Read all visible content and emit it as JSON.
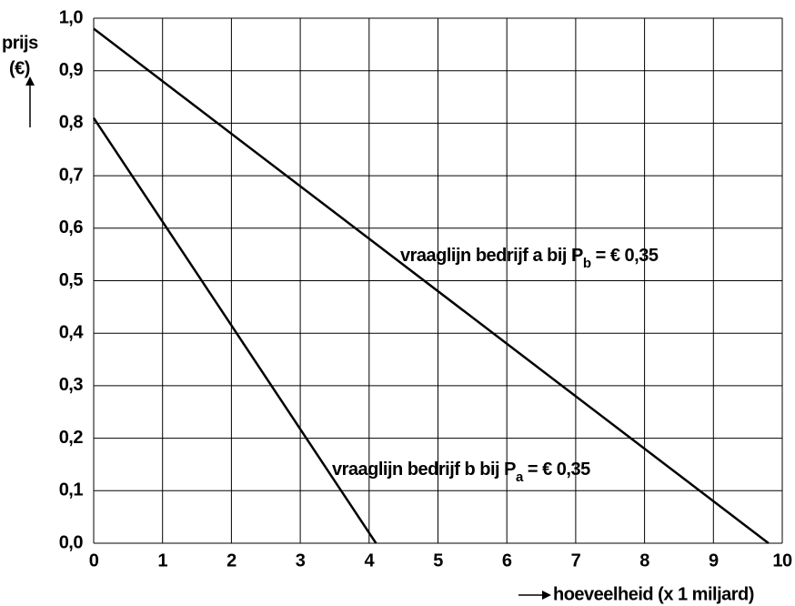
{
  "chart_data": {
    "type": "line",
    "ylabel": [
      "prijs",
      "(€)"
    ],
    "xlabel": "hoeveelheid (x 1 miljard)",
    "xlim": [
      0,
      10
    ],
    "xticks": [
      0,
      1,
      2,
      3,
      4,
      5,
      6,
      7,
      8,
      9,
      10
    ],
    "ylim": [
      0,
      1
    ],
    "yticks": [
      {
        "value": 0,
        "label": "0,0"
      },
      {
        "value": 0.1,
        "label": "0,1"
      },
      {
        "value": 0.2,
        "label": "0,2"
      },
      {
        "value": 0.3,
        "label": "0,3"
      },
      {
        "value": 0.4,
        "label": "0,4"
      },
      {
        "value": 0.5,
        "label": "0,5"
      },
      {
        "value": 0.6,
        "label": "0,6"
      },
      {
        "value": 0.7,
        "label": "0,7"
      },
      {
        "value": 0.8,
        "label": "0,8"
      },
      {
        "value": 0.9,
        "label": "0,9"
      },
      {
        "value": 1,
        "label": "1,0"
      }
    ],
    "grid": true,
    "series": [
      {
        "color": "#000000",
        "x": [
          0,
          9.8
        ],
        "values": [
          0.98,
          0
        ]
      },
      {
        "color": "#000000",
        "x": [
          0,
          4.1
        ],
        "values": [
          0.81,
          0
        ]
      }
    ],
    "annotations": [
      {
        "text": "vraaglijn bedrijf a bij P",
        "sub": "b",
        "rest": " = € 0,35"
      },
      {
        "text": "vraaglijn bedrijf b bij P",
        "sub": "a",
        "rest": " = € 0,35"
      }
    ]
  }
}
